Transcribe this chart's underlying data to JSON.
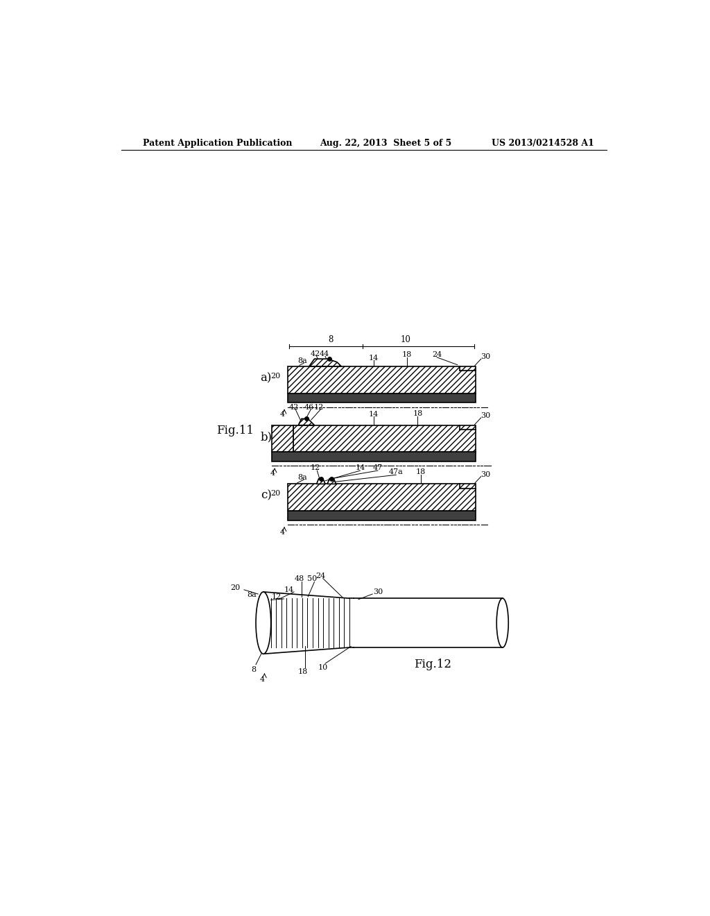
{
  "bg_color": "#ffffff",
  "header_left": "Patent Application Publication",
  "header_mid": "Aug. 22, 2013  Sheet 5 of 5",
  "header_right": "US 2013/0214528 A1",
  "fig11_label": "Fig.11",
  "fig12_label": "Fig.12",
  "title_fontsize": 9,
  "label_fontsize": 8.5,
  "small_fontsize": 8
}
